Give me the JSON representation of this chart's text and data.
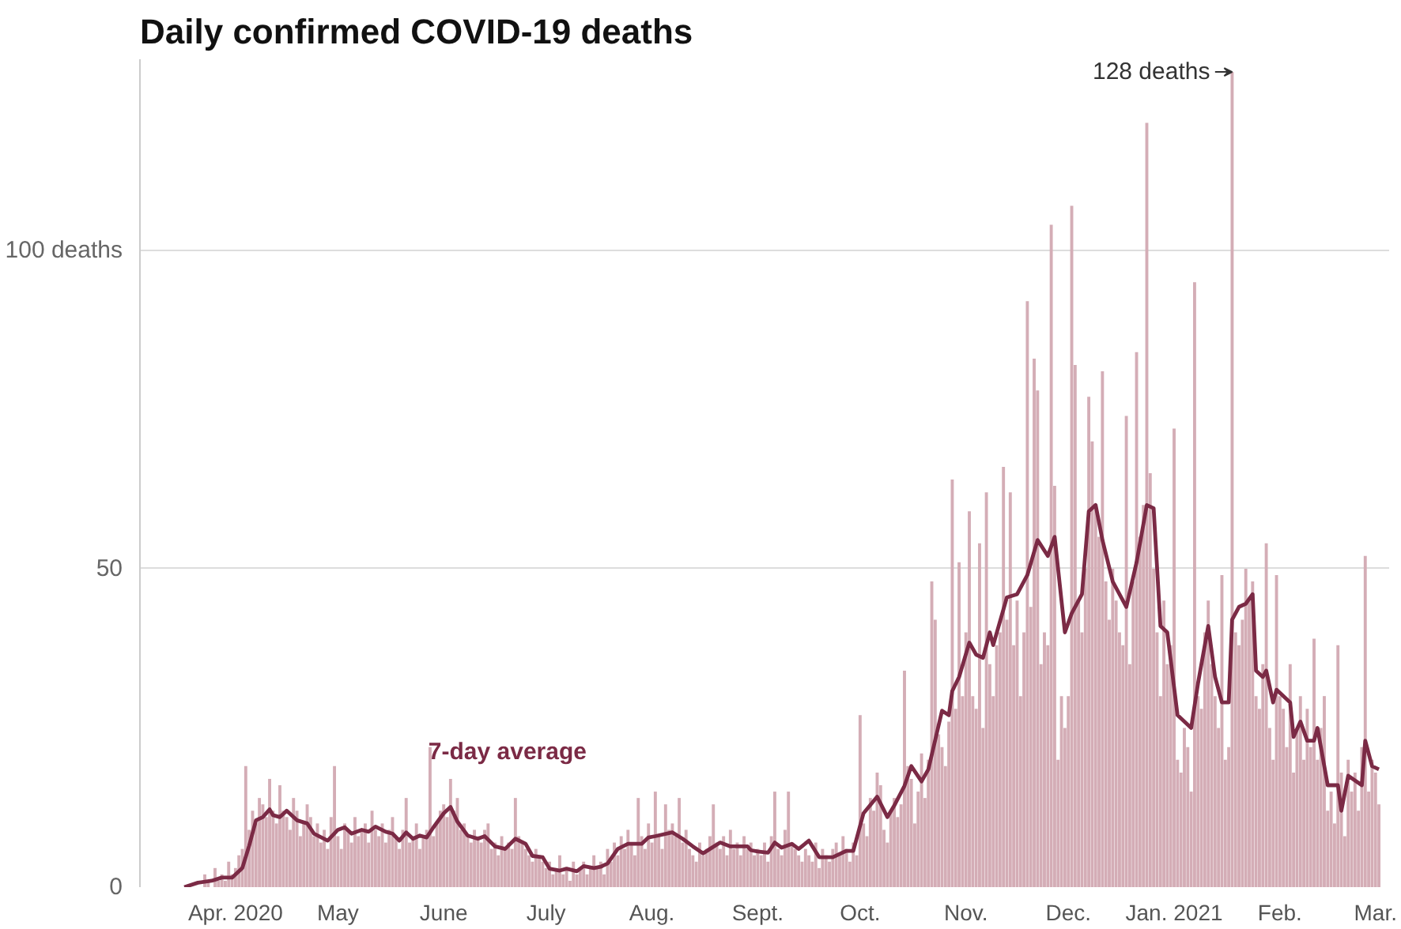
{
  "chart_data": {
    "type": "bar",
    "title": "Daily confirmed COVID-19 deaths",
    "xlim": [
      "2020-03-04",
      "2021-03-05"
    ],
    "xticks": [
      {
        "value": "2020-04-01",
        "label": "Apr. 2020"
      },
      {
        "value": "2020-05-01",
        "label": "May"
      },
      {
        "value": "2020-06-01",
        "label": "June"
      },
      {
        "value": "2020-07-01",
        "label": "July"
      },
      {
        "value": "2020-08-01",
        "label": "Aug."
      },
      {
        "value": "2020-09-01",
        "label": "Sept."
      },
      {
        "value": "2020-10-01",
        "label": "Oct."
      },
      {
        "value": "2020-11-01",
        "label": "Nov."
      },
      {
        "value": "2020-12-01",
        "label": "Dec."
      },
      {
        "value": "2021-01-01",
        "label": "Jan. 2021"
      },
      {
        "value": "2021-02-01",
        "label": "Feb."
      },
      {
        "value": "2021-03-01",
        "label": "Mar."
      }
    ],
    "ylim": [
      0,
      130
    ],
    "yticks": [
      0,
      50,
      {
        "value": 100,
        "label": "100 deaths"
      }
    ],
    "grid": "y",
    "annotations": [
      {
        "text": "128 deaths",
        "x": "2021-01-18",
        "y": 128
      }
    ],
    "series": [
      {
        "color": "#d4adb6",
        "x": [
          "2020-03-17",
          "2020-03-18",
          "2020-03-19",
          "2020-03-20",
          "2020-03-21",
          "2020-03-22",
          "2020-03-23",
          "2020-03-24",
          "2020-03-25",
          "2020-03-26",
          "2020-03-27",
          "2020-03-28",
          "2020-03-29",
          "2020-03-30",
          "2020-03-31",
          "2020-04-01",
          "2020-04-02",
          "2020-04-03",
          "2020-04-04",
          "2020-04-05",
          "2020-04-06",
          "2020-04-07",
          "2020-04-08",
          "2020-04-09",
          "2020-04-10",
          "2020-04-11",
          "2020-04-12",
          "2020-04-13",
          "2020-04-14",
          "2020-04-15",
          "2020-04-16",
          "2020-04-17",
          "2020-04-18",
          "2020-04-19",
          "2020-04-20",
          "2020-04-21",
          "2020-04-22",
          "2020-04-23",
          "2020-04-24",
          "2020-04-25",
          "2020-04-26",
          "2020-04-27",
          "2020-04-28",
          "2020-04-29",
          "2020-04-30",
          "2020-05-01",
          "2020-05-02",
          "2020-05-03",
          "2020-05-04",
          "2020-05-05",
          "2020-05-06",
          "2020-05-07",
          "2020-05-08",
          "2020-05-09",
          "2020-05-10",
          "2020-05-11",
          "2020-05-12",
          "2020-05-13",
          "2020-05-14",
          "2020-05-15",
          "2020-05-16",
          "2020-05-17",
          "2020-05-18",
          "2020-05-19",
          "2020-05-20",
          "2020-05-21",
          "2020-05-22",
          "2020-05-23",
          "2020-05-24",
          "2020-05-25",
          "2020-05-26",
          "2020-05-27",
          "2020-05-28",
          "2020-05-29",
          "2020-05-30",
          "2020-05-31",
          "2020-06-01",
          "2020-06-02",
          "2020-06-03",
          "2020-06-04",
          "2020-06-05",
          "2020-06-06",
          "2020-06-07",
          "2020-06-08",
          "2020-06-09",
          "2020-06-10",
          "2020-06-11",
          "2020-06-12",
          "2020-06-13",
          "2020-06-14",
          "2020-06-15",
          "2020-06-16",
          "2020-06-17",
          "2020-06-18",
          "2020-06-19",
          "2020-06-20",
          "2020-06-21",
          "2020-06-22",
          "2020-06-23",
          "2020-06-24",
          "2020-06-25",
          "2020-06-26",
          "2020-06-27",
          "2020-06-28",
          "2020-06-29",
          "2020-06-30",
          "2020-07-01",
          "2020-07-02",
          "2020-07-03",
          "2020-07-04",
          "2020-07-05",
          "2020-07-06",
          "2020-07-07",
          "2020-07-08",
          "2020-07-09",
          "2020-07-10",
          "2020-07-11",
          "2020-07-12",
          "2020-07-13",
          "2020-07-14",
          "2020-07-15",
          "2020-07-16",
          "2020-07-17",
          "2020-07-18",
          "2020-07-19",
          "2020-07-20",
          "2020-07-21",
          "2020-07-22",
          "2020-07-23",
          "2020-07-24",
          "2020-07-25",
          "2020-07-26",
          "2020-07-27",
          "2020-07-28",
          "2020-07-29",
          "2020-07-30",
          "2020-07-31",
          "2020-08-01",
          "2020-08-02",
          "2020-08-03",
          "2020-08-04",
          "2020-08-05",
          "2020-08-06",
          "2020-08-07",
          "2020-08-08",
          "2020-08-09",
          "2020-08-10",
          "2020-08-11",
          "2020-08-12",
          "2020-08-13",
          "2020-08-14",
          "2020-08-15",
          "2020-08-16",
          "2020-08-17",
          "2020-08-18",
          "2020-08-19",
          "2020-08-20",
          "2020-08-21",
          "2020-08-22",
          "2020-08-23",
          "2020-08-24",
          "2020-08-25",
          "2020-08-26",
          "2020-08-27",
          "2020-08-28",
          "2020-08-29",
          "2020-08-30",
          "2020-08-31",
          "2020-09-01",
          "2020-09-02",
          "2020-09-03",
          "2020-09-04",
          "2020-09-05",
          "2020-09-06",
          "2020-09-07",
          "2020-09-08",
          "2020-09-09",
          "2020-09-10",
          "2020-09-11",
          "2020-09-12",
          "2020-09-13",
          "2020-09-14",
          "2020-09-15",
          "2020-09-16",
          "2020-09-17",
          "2020-09-18",
          "2020-09-19",
          "2020-09-20",
          "2020-09-21",
          "2020-09-22",
          "2020-09-23",
          "2020-09-24",
          "2020-09-25",
          "2020-09-26",
          "2020-09-27",
          "2020-09-28",
          "2020-09-29",
          "2020-09-30",
          "2020-10-01",
          "2020-10-02",
          "2020-10-03",
          "2020-10-04",
          "2020-10-05",
          "2020-10-06",
          "2020-10-07",
          "2020-10-08",
          "2020-10-09",
          "2020-10-10",
          "2020-10-11",
          "2020-10-12",
          "2020-10-13",
          "2020-10-14",
          "2020-10-15",
          "2020-10-16",
          "2020-10-17",
          "2020-10-18",
          "2020-10-19",
          "2020-10-20",
          "2020-10-21",
          "2020-10-22",
          "2020-10-23",
          "2020-10-24",
          "2020-10-25",
          "2020-10-26",
          "2020-10-27",
          "2020-10-28",
          "2020-10-29",
          "2020-10-30",
          "2020-10-31",
          "2020-11-01",
          "2020-11-02",
          "2020-11-03",
          "2020-11-04",
          "2020-11-05",
          "2020-11-06",
          "2020-11-07",
          "2020-11-08",
          "2020-11-09",
          "2020-11-10",
          "2020-11-11",
          "2020-11-12",
          "2020-11-13",
          "2020-11-14",
          "2020-11-15",
          "2020-11-16",
          "2020-11-17",
          "2020-11-18",
          "2020-11-19",
          "2020-11-20",
          "2020-11-21",
          "2020-11-22",
          "2020-11-23",
          "2020-11-24",
          "2020-11-25",
          "2020-11-26",
          "2020-11-27",
          "2020-11-28",
          "2020-11-29",
          "2020-11-30",
          "2020-12-01",
          "2020-12-02",
          "2020-12-03",
          "2020-12-04",
          "2020-12-05",
          "2020-12-06",
          "2020-12-07",
          "2020-12-08",
          "2020-12-09",
          "2020-12-10",
          "2020-12-11",
          "2020-12-12",
          "2020-12-13",
          "2020-12-14",
          "2020-12-15",
          "2020-12-16",
          "2020-12-17",
          "2020-12-18",
          "2020-12-19",
          "2020-12-20",
          "2020-12-21",
          "2020-12-22",
          "2020-12-23",
          "2020-12-24",
          "2020-12-25",
          "2020-12-26",
          "2020-12-27",
          "2020-12-28",
          "2020-12-29",
          "2020-12-30",
          "2020-12-31",
          "2021-01-01",
          "2021-01-02",
          "2021-01-03",
          "2021-01-04",
          "2021-01-05",
          "2021-01-06",
          "2021-01-07",
          "2021-01-08",
          "2021-01-09",
          "2021-01-10",
          "2021-01-11",
          "2021-01-12",
          "2021-01-13",
          "2021-01-14",
          "2021-01-15",
          "2021-01-16",
          "2021-01-17",
          "2021-01-18",
          "2021-01-19",
          "2021-01-20",
          "2021-01-21",
          "2021-01-22",
          "2021-01-23",
          "2021-01-24",
          "2021-01-25",
          "2021-01-26",
          "2021-01-27",
          "2021-01-28",
          "2021-01-29",
          "2021-01-30",
          "2021-01-31",
          "2021-02-01",
          "2021-02-02",
          "2021-02-03",
          "2021-02-04",
          "2021-02-05",
          "2021-02-06",
          "2021-02-07",
          "2021-02-08",
          "2021-02-09",
          "2021-02-10",
          "2021-02-11",
          "2021-02-12",
          "2021-02-13",
          "2021-02-14",
          "2021-02-15",
          "2021-02-16",
          "2021-02-17",
          "2021-02-18",
          "2021-02-19",
          "2021-02-20",
          "2021-02-21",
          "2021-02-22",
          "2021-02-23",
          "2021-02-24",
          "2021-02-25",
          "2021-02-26",
          "2021-02-27",
          "2021-02-28",
          "2021-03-01",
          "2021-03-02"
        ],
        "values": [
          0,
          0,
          null,
          0,
          null,
          0,
          2,
          1,
          0,
          3,
          1,
          2,
          1,
          4,
          2,
          3,
          5,
          6,
          19,
          9,
          12,
          10,
          14,
          13,
          11,
          17,
          12,
          10,
          16,
          12,
          11,
          9,
          14,
          12,
          8,
          10,
          13,
          11,
          8,
          10,
          7,
          9,
          6,
          11,
          19,
          8,
          6,
          10,
          9,
          7,
          11,
          8,
          9,
          10,
          7,
          12,
          9,
          8,
          10,
          7,
          9,
          11,
          8,
          6,
          9,
          14,
          7,
          8,
          10,
          6,
          8,
          9,
          22,
          8,
          10,
          12,
          13,
          11,
          17,
          12,
          14,
          9,
          10,
          8,
          7,
          9,
          8,
          7,
          9,
          10,
          6,
          7,
          5,
          8,
          6,
          7,
          6,
          14,
          8,
          7,
          6,
          5,
          4,
          6,
          5,
          4,
          3,
          4,
          2,
          3,
          5,
          2,
          3,
          1,
          4,
          2,
          3,
          4,
          2,
          3,
          5,
          3,
          4,
          2,
          6,
          4,
          7,
          5,
          8,
          6,
          9,
          7,
          5,
          14,
          8,
          6,
          10,
          7,
          15,
          8,
          6,
          13,
          9,
          10,
          8,
          14,
          7,
          9,
          6,
          5,
          4,
          7,
          5,
          6,
          8,
          13,
          7,
          6,
          8,
          5,
          9,
          6,
          7,
          5,
          8,
          6,
          7,
          5,
          6,
          5,
          7,
          4,
          8,
          15,
          6,
          5,
          9,
          15,
          7,
          6,
          5,
          4,
          6,
          5,
          4,
          7,
          3,
          6,
          5,
          4,
          6,
          7,
          5,
          8,
          6,
          4,
          7,
          5,
          27,
          10,
          8,
          14,
          12,
          18,
          16,
          9,
          7,
          12,
          14,
          11,
          13,
          34,
          19,
          17,
          10,
          15,
          21,
          14,
          20,
          48,
          42,
          24,
          22,
          19,
          26,
          64,
          28,
          51,
          30,
          40,
          59,
          30,
          28,
          54,
          25,
          62,
          35,
          30,
          38,
          40,
          66,
          42,
          62,
          38,
          45,
          30,
          40,
          92,
          44,
          83,
          78,
          35,
          40,
          38,
          104,
          63,
          20,
          30,
          25,
          30,
          107,
          82,
          45,
          40,
          50,
          77,
          70,
          60,
          55,
          81,
          48,
          42,
          50,
          45,
          40,
          38,
          74,
          35,
          48,
          84,
          55,
          60,
          120,
          65,
          50,
          40,
          30,
          45,
          35,
          38,
          72,
          20,
          18,
          25,
          22,
          15,
          95,
          30,
          28,
          40,
          45,
          35,
          30,
          25,
          49,
          20,
          22,
          128,
          40,
          38,
          42,
          50,
          45,
          48,
          30,
          28,
          35,
          54,
          25,
          20,
          49,
          30,
          28,
          22,
          35,
          18,
          25,
          30,
          20,
          28,
          22,
          39,
          20,
          25,
          30,
          12,
          15,
          10,
          38,
          18,
          8,
          20,
          15,
          18,
          12,
          22,
          52,
          15,
          20,
          18,
          13
        ]
      },
      {
        "type": "line",
        "name": "7-day average",
        "color": "#7b2a45",
        "x": [
          "2020-03-17",
          "2020-03-21",
          "2020-03-25",
          "2020-03-28",
          "2020-03-31",
          "2020-04-03",
          "2020-04-05",
          "2020-04-07",
          "2020-04-09",
          "2020-04-11",
          "2020-04-12",
          "2020-04-14",
          "2020-04-16",
          "2020-04-19",
          "2020-04-22",
          "2020-04-24",
          "2020-04-28",
          "2020-05-01",
          "2020-05-03",
          "2020-05-05",
          "2020-05-08",
          "2020-05-10",
          "2020-05-12",
          "2020-05-15",
          "2020-05-17",
          "2020-05-19",
          "2020-05-21",
          "2020-05-23",
          "2020-05-25",
          "2020-05-27",
          "2020-05-29",
          "2020-06-01",
          "2020-06-03",
          "2020-06-05",
          "2020-06-08",
          "2020-06-11",
          "2020-06-13",
          "2020-06-16",
          "2020-06-19",
          "2020-06-22",
          "2020-06-25",
          "2020-06-27",
          "2020-06-30",
          "2020-07-02",
          "2020-07-05",
          "2020-07-07",
          "2020-07-10",
          "2020-07-12",
          "2020-07-15",
          "2020-07-17",
          "2020-07-19",
          "2020-07-22",
          "2020-07-25",
          "2020-07-29",
          "2020-07-31",
          "2020-08-02",
          "2020-08-07",
          "2020-08-10",
          "2020-08-13",
          "2020-08-16",
          "2020-08-18",
          "2020-08-21",
          "2020-08-24",
          "2020-08-29",
          "2020-08-30",
          "2020-09-01",
          "2020-09-04",
          "2020-09-06",
          "2020-09-08",
          "2020-09-11",
          "2020-09-13",
          "2020-09-16",
          "2020-09-19",
          "2020-09-23",
          "2020-09-27",
          "2020-09-29",
          "2020-10-02",
          "2020-10-06",
          "2020-10-09",
          "2020-10-11",
          "2020-10-14",
          "2020-10-16",
          "2020-10-19",
          "2020-10-21",
          "2020-10-25",
          "2020-10-27",
          "2020-10-28",
          "2020-10-30",
          "2020-11-02",
          "2020-11-04",
          "2020-11-06",
          "2020-11-08",
          "2020-11-09",
          "2020-11-13",
          "2020-11-16",
          "2020-11-19",
          "2020-11-22",
          "2020-11-25",
          "2020-11-27",
          "2020-11-30",
          "2020-12-02",
          "2020-12-05",
          "2020-12-07",
          "2020-12-09",
          "2020-12-11",
          "2020-12-14",
          "2020-12-18",
          "2020-12-21",
          "2020-12-24",
          "2020-12-26",
          "2020-12-28",
          "2020-12-30",
          "2021-01-02",
          "2021-01-06",
          "2021-01-08",
          "2021-01-11",
          "2021-01-13",
          "2021-01-15",
          "2021-01-17",
          "2021-01-18",
          "2021-01-20",
          "2021-01-22",
          "2021-01-24",
          "2021-01-25",
          "2021-01-27",
          "2021-01-28",
          "2021-01-30",
          "2021-01-31",
          "2021-02-04",
          "2021-02-05",
          "2021-02-07",
          "2021-02-09",
          "2021-02-11",
          "2021-02-12",
          "2021-02-15",
          "2021-02-18",
          "2021-02-19",
          "2021-02-21",
          "2021-02-25",
          "2021-02-26",
          "2021-02-28",
          "2021-03-02"
        ],
        "values": [
          0,
          0.7,
          1,
          1.5,
          1.5,
          3,
          6.5,
          10.5,
          11,
          12.2,
          11.3,
          11,
          12,
          10.5,
          10,
          8.4,
          7.3,
          9,
          9.4,
          8.4,
          9,
          8.7,
          9.5,
          8.7,
          8.4,
          7.3,
          8.6,
          7.6,
          8.1,
          7.8,
          9.4,
          11.6,
          12.6,
          10.3,
          8.1,
          7.6,
          8,
          6.4,
          6,
          7.6,
          6.8,
          4.9,
          4.7,
          2.9,
          2.6,
          2.9,
          2.5,
          3.3,
          3,
          3.2,
          3.7,
          6,
          6.8,
          6.8,
          7.8,
          8,
          8.6,
          7.6,
          6.4,
          5.3,
          6,
          7,
          6.4,
          6.4,
          5.8,
          5.6,
          5.4,
          7,
          6.2,
          6.8,
          6,
          7.3,
          4.7,
          4.7,
          5.7,
          5.7,
          11.6,
          14.2,
          11,
          12.8,
          15.9,
          19,
          16.6,
          18.5,
          27.7,
          27,
          30.8,
          33,
          38.4,
          36.5,
          36,
          40,
          38,
          45.5,
          46,
          49,
          54.5,
          52,
          55,
          40,
          43,
          46,
          59,
          60,
          54.5,
          48,
          44,
          51,
          60,
          59.5,
          41,
          40,
          27,
          25,
          32,
          41,
          33,
          29,
          29,
          42,
          44,
          44.5,
          46,
          34,
          33,
          34,
          29,
          31,
          29,
          23.6,
          26,
          23,
          23,
          25,
          16,
          16,
          12,
          17.5,
          16,
          23,
          19,
          18.5
        ]
      }
    ]
  }
}
